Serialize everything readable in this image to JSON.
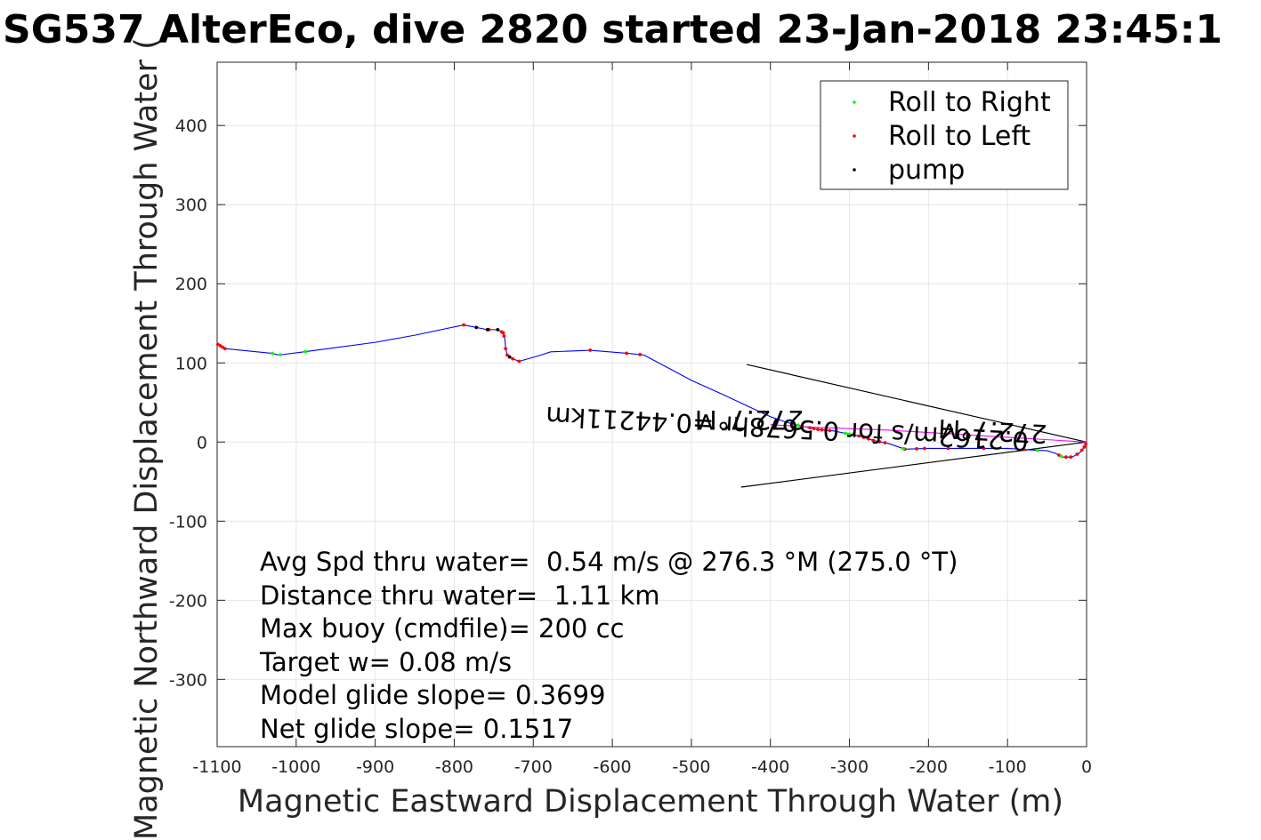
{
  "chart_data": {
    "type": "line",
    "title": "SG537 AlterEco, dive 2820 started 23-Jan-2018 23:45:1",
    "xlabel": "Magnetic Eastward Displacement Through Water (m)",
    "ylabel": "Magnetic Northward Displacement Through Water (",
    "xlim": [
      -1100,
      0
    ],
    "ylim": [
      -385,
      480
    ],
    "x_ticks": [
      -1100,
      -1000,
      -900,
      -800,
      -700,
      -600,
      -500,
      -400,
      -300,
      -200,
      -100,
      0
    ],
    "x_tick_labels": [
      "-1100",
      "-1000",
      "-900",
      "-800",
      "-700",
      "-600",
      "-500",
      "-400",
      "-300",
      "-200",
      "-100",
      "0"
    ],
    "y_ticks": [
      -300,
      -200,
      -100,
      0,
      100,
      200,
      300,
      400
    ],
    "y_tick_labels": [
      "-300",
      "-200",
      "-100",
      "0",
      "100",
      "200",
      "300",
      "400"
    ],
    "grid": true,
    "legend_position": "top-right",
    "legend": [
      {
        "label": "Roll to Right",
        "color": "#00ff00"
      },
      {
        "label": "Roll to Left",
        "color": "#ff0000"
      },
      {
        "label": "pump",
        "color": "#000000"
      }
    ],
    "series": [
      {
        "role": "track",
        "color": "#0000ff",
        "x": [
          0,
          -2,
          -8,
          -18,
          -30,
          -40,
          -50,
          -70,
          -100,
          -130,
          -160,
          -200,
          -230,
          -250,
          -270,
          -285,
          -300,
          -320,
          -340,
          -360,
          -380,
          -400,
          -430,
          -460,
          -500,
          -530,
          -560,
          -580,
          -628,
          -678,
          -690,
          -718,
          -728,
          -733,
          -735,
          -736,
          -738,
          -745,
          -758,
          -788,
          -850,
          -900,
          -990,
          -1022,
          -1030,
          -1090,
          -1100
        ],
        "y": [
          0,
          -5,
          -13,
          -19,
          -19,
          -14,
          -11,
          -10,
          -8,
          -8,
          -8,
          -8,
          -9,
          -2,
          2,
          7,
          10,
          14,
          16,
          20,
          25,
          32,
          46,
          60,
          78,
          94,
          110,
          112,
          116,
          114,
          110,
          102,
          106,
          110,
          118,
          130,
          138,
          142,
          142,
          148,
          135,
          126,
          114,
          110,
          112,
          118,
          124
        ]
      },
      {
        "role": "current",
        "color": "#ff00ff",
        "x": [
          0,
          -50,
          -100,
          -150,
          -200,
          -250,
          -300,
          -350,
          -400
        ],
        "y": [
          0,
          3,
          6,
          9,
          12,
          15,
          17,
          19,
          22
        ]
      }
    ],
    "markers": [
      {
        "type": "roll_left",
        "color": "#ff0000",
        "x": [
          -1,
          -3,
          -6,
          -12,
          -20,
          -26,
          -35,
          -80,
          -130,
          -175,
          -205,
          -215,
          -230,
          -255,
          -262,
          -270,
          -276,
          -282,
          -288,
          -325,
          -330,
          -335,
          -340,
          -345,
          -350,
          -360,
          -565,
          -582,
          -628,
          -718,
          -726,
          -730,
          -733,
          -735,
          -737,
          -738,
          -740,
          -756,
          -788,
          -1090,
          -1093,
          -1096,
          -1099
        ]
      },
      {
        "type": "roll_right",
        "color": "#00ff00",
        "x": [
          -32,
          -62,
          -232,
          -300,
          -305,
          -365,
          -988,
          -1020,
          -1030
        ]
      },
      {
        "type": "pump",
        "color": "#000000",
        "x": [
          -730,
          -745,
          -758,
          -772
        ]
      }
    ],
    "annotation_lines": [
      {
        "x": [
          0,
          -430
        ],
        "y": [
          0,
          98
        ]
      },
      {
        "x": [
          0,
          -437
        ],
        "y": [
          0,
          -57
        ]
      }
    ],
    "rotated_labels": [
      "0.2162m/s for 0.5678hr =0.44211km",
      "272.7°M",
      "272.7°M"
    ],
    "stats": [
      "Avg Spd thru water=  0.54 m/s @ 276.3 °M (275.0 °T)",
      "Distance thru water=  1.11 km",
      "Max buoy (cmdfile)= 200 cc",
      "Target w= 0.08 m/s",
      "Model glide slope= 0.3699",
      "Net glide slope= 0.1517"
    ]
  }
}
